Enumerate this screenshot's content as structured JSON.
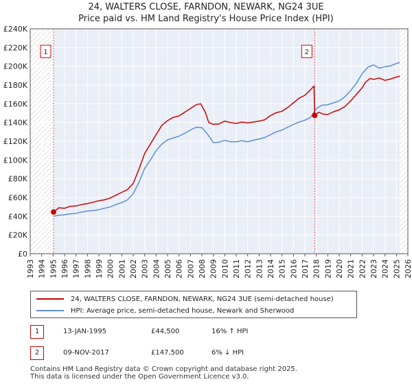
{
  "title": "24, WALTERS CLOSE, FARNDON, NEWARK, NG24 3UE",
  "subtitle": "Price paid vs. HM Land Registry's House Price Index (HPI)",
  "chart_data": {
    "type": "line",
    "title": "24, WALTERS CLOSE, FARNDON, NEWARK, NG24 3UE",
    "subtitle": "Price paid vs. HM Land Registry's House Price Index (HPI)",
    "xlim": [
      1993,
      2026
    ],
    "ylim": [
      0,
      240000
    ],
    "xticks": [
      1993,
      1994,
      1995,
      1996,
      1997,
      1998,
      1999,
      2000,
      2001,
      2002,
      2003,
      2004,
      2005,
      2006,
      2007,
      2008,
      2009,
      2010,
      2011,
      2012,
      2013,
      2014,
      2015,
      2016,
      2017,
      2018,
      2019,
      2020,
      2021,
      2022,
      2023,
      2024,
      2025,
      2026
    ],
    "yticks": [
      0,
      20000,
      40000,
      60000,
      80000,
      100000,
      120000,
      140000,
      160000,
      180000,
      200000,
      220000,
      240000
    ],
    "ytick_labels": [
      "£0",
      "£20K",
      "£40K",
      "£60K",
      "£80K",
      "£100K",
      "£120K",
      "£140K",
      "£160K",
      "£180K",
      "£200K",
      "£220K",
      "£240K"
    ],
    "grid": true,
    "hatched_regions": [
      [
        1993,
        1995.04
      ],
      [
        2025.3,
        2026
      ]
    ],
    "series": [
      {
        "name": "24, WALTERS CLOSE, FARNDON, NEWARK, NG24 3UE (semi-detached house)",
        "color": "#cc0000",
        "x": [
          1995.04,
          1995.5,
          1996,
          1996.5,
          1997,
          1997.5,
          1998,
          1998.5,
          1999,
          1999.5,
          2000,
          2000.5,
          2001,
          2001.5,
          2002,
          2002.5,
          2003,
          2003.5,
          2004,
          2004.5,
          2005,
          2005.5,
          2006,
          2006.5,
          2007,
          2007.5,
          2007.9,
          2008.3,
          2008.6,
          2009,
          2009.5,
          2010,
          2010.5,
          2011,
          2011.5,
          2012,
          2012.5,
          2013,
          2013.5,
          2014,
          2014.5,
          2015,
          2015.5,
          2016,
          2016.5,
          2017,
          2017.5,
          2017.8,
          2017.86,
          2018.2,
          2018.6,
          2019,
          2019.5,
          2020,
          2020.5,
          2021,
          2021.5,
          2022,
          2022.3,
          2022.7,
          2023,
          2023.5,
          2024,
          2024.5,
          2025,
          2025.3
        ],
        "y": [
          44500,
          49000,
          48500,
          50500,
          51000,
          52500,
          53500,
          55000,
          56500,
          57500,
          59500,
          62500,
          65500,
          68500,
          75000,
          90000,
          107000,
          117000,
          127000,
          137000,
          142000,
          145500,
          147000,
          151000,
          155000,
          159000,
          160000,
          151000,
          140000,
          138000,
          138500,
          141500,
          140000,
          139000,
          140500,
          139500,
          140500,
          141500,
          143000,
          147500,
          150500,
          152000,
          156000,
          161000,
          166000,
          169000,
          175000,
          179000,
          147500,
          151000,
          149000,
          148500,
          151500,
          153500,
          157000,
          163000,
          170000,
          177000,
          183000,
          187000,
          186000,
          187500,
          185000,
          186500,
          188500,
          189500
        ]
      },
      {
        "name": "HPI: Average price, semi-detached house, Newark and Sherwood",
        "color": "#5b8fd0",
        "x": [
          1995.04,
          1995.5,
          1996,
          1996.5,
          1997,
          1997.5,
          1998,
          1998.5,
          1999,
          1999.5,
          2000,
          2000.5,
          2001,
          2001.5,
          2002,
          2002.5,
          2003,
          2003.5,
          2004,
          2004.5,
          2005,
          2005.5,
          2006,
          2006.5,
          2007,
          2007.5,
          2008,
          2008.5,
          2009,
          2009.5,
          2010,
          2010.5,
          2011,
          2011.5,
          2012,
          2012.5,
          2013,
          2013.5,
          2014,
          2014.5,
          2015,
          2015.5,
          2016,
          2016.5,
          2017,
          2017.5,
          2018,
          2018.5,
          2019,
          2019.5,
          2020,
          2020.5,
          2021,
          2021.5,
          2022,
          2022.5,
          2023,
          2023.5,
          2024,
          2024.5,
          2025,
          2025.3
        ],
        "y": [
          40000,
          41000,
          41500,
          42500,
          43000,
          44500,
          45500,
          46000,
          47000,
          48500,
          50000,
          52500,
          54500,
          57500,
          64000,
          76000,
          91000,
          100000,
          110000,
          117000,
          121500,
          123500,
          125500,
          128500,
          132000,
          135000,
          134500,
          127500,
          118500,
          119000,
          121000,
          119500,
          119500,
          120500,
          119500,
          121000,
          122500,
          124000,
          127000,
          130000,
          132000,
          135000,
          138000,
          140500,
          142500,
          145500,
          155000,
          158500,
          159000,
          161000,
          163000,
          167500,
          174000,
          182000,
          192000,
          199000,
          201500,
          198000,
          199500,
          200500,
          203000,
          204000
        ]
      }
    ],
    "annotations": [
      {
        "label": "1",
        "x": 1995.04,
        "y": 44500
      },
      {
        "label": "2",
        "x": 2017.86,
        "y": 147500
      }
    ]
  },
  "legend": {
    "items": [
      {
        "label": "24, WALTERS CLOSE, FARNDON, NEWARK, NG24 3UE (semi-detached house)",
        "color": "#cc0000"
      },
      {
        "label": "HPI: Average price, semi-detached house, Newark and Sherwood",
        "color": "#5b8fd0"
      }
    ]
  },
  "sales": [
    {
      "num": "1",
      "date": "13-JAN-1995",
      "price": "£44,500",
      "hpi": "16% ↑ HPI"
    },
    {
      "num": "2",
      "date": "09-NOV-2017",
      "price": "£147,500",
      "hpi": "6% ↓ HPI"
    }
  ],
  "footer": {
    "line1": "Contains HM Land Registry data © Crown copyright and database right 2025.",
    "line2": "This data is licensed under the Open Government Licence v3.0."
  }
}
